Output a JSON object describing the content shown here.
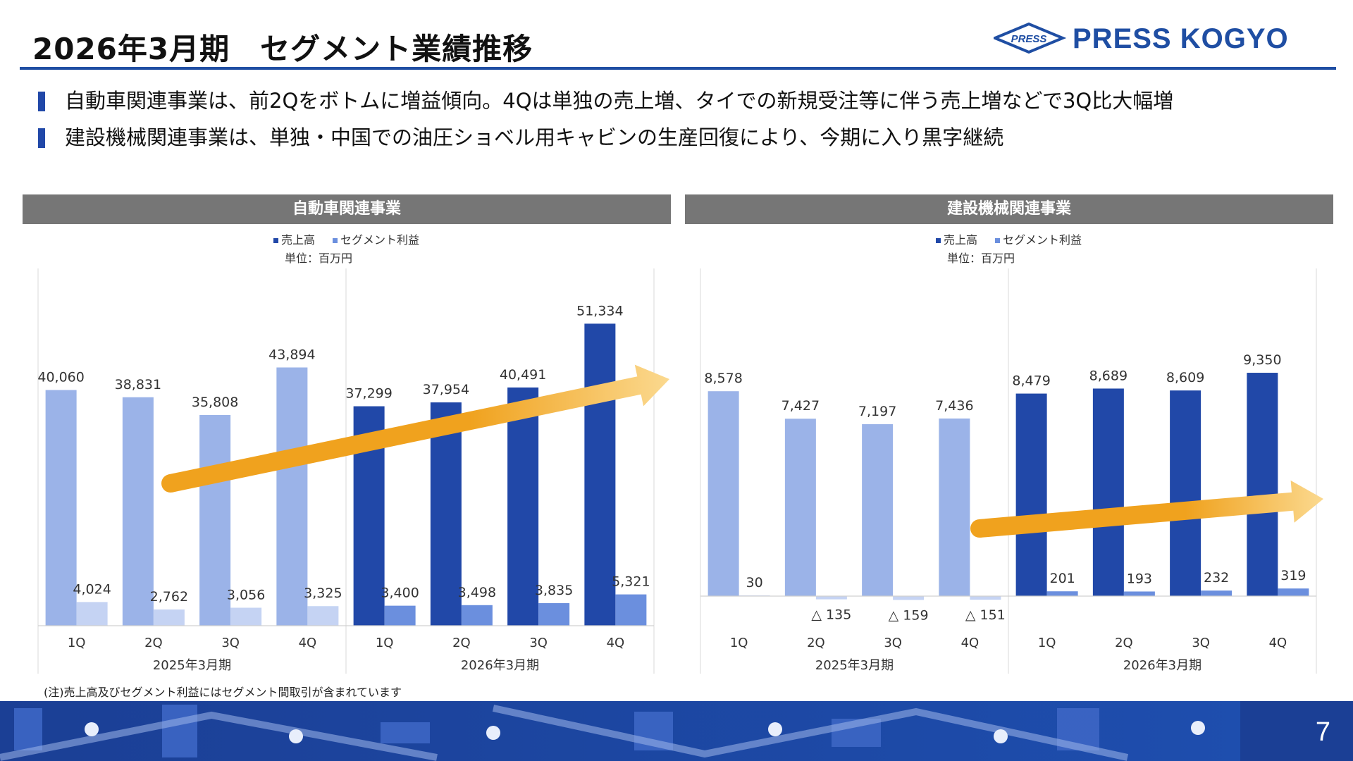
{
  "title": "2026年3月期　セグメント業績推移",
  "logo": {
    "wordmark": "PRESS KOGYO",
    "emblem_text": "PRESS",
    "color": "#1f4ea3"
  },
  "bullets": [
    "自動車関連事業は、前2Qをボトムに増益傾向。4Qは単独の売上増、タイでの新規受注等に伴う売上増などで3Q比大幅増",
    "建設機械関連事業は、単独・中国での油圧ショベル用キャビンの生産回復により、今期に入り黒字継続"
  ],
  "footnote": "(注)売上高及びセグメント利益にはセグメント間取引が含まれています",
  "page_number": "7",
  "colors": {
    "sales_current": "#2148a8",
    "profit_current": "#6b8fde",
    "sales_prior": "#9bb3e8",
    "profit_prior": "#c5d3f3",
    "header_bg": "#767676",
    "arrow_start": "#f0a21e",
    "arrow_end": "#fbd98f"
  },
  "chart_data": [
    {
      "type": "bar",
      "title": "自動車関連事業",
      "unit": "単位：百万円",
      "legend": [
        "売上高",
        "セグメント利益"
      ],
      "legend_position": "top-center",
      "categories": [
        "1Q",
        "2Q",
        "3Q",
        "4Q",
        "1Q",
        "2Q",
        "3Q",
        "4Q"
      ],
      "groups": [
        "2025年3月期",
        "2026年3月期"
      ],
      "series": [
        {
          "name": "売上高",
          "values": [
            40060,
            38831,
            35808,
            43894,
            37299,
            37954,
            40491,
            51334
          ]
        },
        {
          "name": "セグメント利益",
          "values": [
            4024,
            2762,
            3056,
            3325,
            3400,
            3498,
            3835,
            5321
          ]
        }
      ],
      "sales_labels": [
        "40,060",
        "38,831",
        "35,808",
        "43,894",
        "37,299",
        "37,954",
        "40,491",
        "51,334"
      ],
      "profit_labels": [
        "4,024",
        "2,762",
        "3,056",
        "3,325",
        "3,400",
        "3,498",
        "3,835",
        "5,321"
      ],
      "ylim": [
        0,
        58000
      ],
      "grid": false
    },
    {
      "type": "bar",
      "title": "建設機械関連事業",
      "unit": "単位：百万円",
      "legend": [
        "売上高",
        "セグメント利益"
      ],
      "legend_position": "top-center",
      "categories": [
        "1Q",
        "2Q",
        "3Q",
        "4Q",
        "1Q",
        "2Q",
        "3Q",
        "4Q"
      ],
      "groups": [
        "2025年3月期",
        "2026年3月期"
      ],
      "series": [
        {
          "name": "売上高",
          "values": [
            8578,
            7427,
            7197,
            7436,
            8479,
            8689,
            8609,
            9350
          ]
        },
        {
          "name": "セグメント利益",
          "values": [
            30,
            -135,
            -159,
            -151,
            201,
            193,
            232,
            319
          ]
        }
      ],
      "sales_labels": [
        "8,578",
        "7,427",
        "7,197",
        "7,436",
        "8,479",
        "8,689",
        "8,609",
        "9,350"
      ],
      "profit_labels": [
        "30",
        "△ 135",
        "△ 159",
        "△ 151",
        "201",
        "193",
        "232",
        "319"
      ],
      "ylim": [
        -800,
        10300
      ],
      "grid": false
    }
  ]
}
